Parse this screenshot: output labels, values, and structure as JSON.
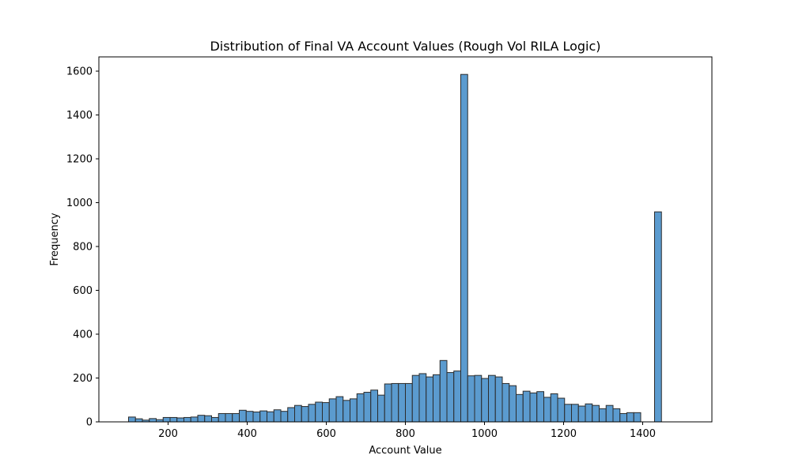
{
  "chart_data": {
    "type": "bar",
    "title": "Distribution of Final VA Account Values (Rough Vol RILA Logic)",
    "xlabel": "Account Value",
    "ylabel": "Frequency",
    "xlim": [
      25,
      1575
    ],
    "ylim": [
      0,
      1665
    ],
    "xticks": [
      200,
      400,
      600,
      800,
      1000,
      1200,
      1400
    ],
    "yticks": [
      0,
      200,
      400,
      600,
      800,
      1000,
      1200,
      1400,
      1600
    ],
    "grid": false,
    "bin_start": 100,
    "bin_width": 17.5,
    "values": [
      22,
      14,
      8,
      15,
      10,
      20,
      20,
      18,
      20,
      22,
      30,
      28,
      20,
      38,
      38,
      38,
      53,
      48,
      45,
      50,
      46,
      55,
      48,
      65,
      75,
      70,
      80,
      90,
      88,
      105,
      115,
      98,
      105,
      128,
      135,
      145,
      122,
      173,
      175,
      175,
      175,
      212,
      220,
      205,
      215,
      280,
      225,
      232,
      1585,
      210,
      212,
      198,
      212,
      205,
      175,
      165,
      125,
      140,
      132,
      138,
      112,
      128,
      108,
      80,
      80,
      72,
      82,
      75,
      60,
      75,
      60,
      38,
      42,
      42,
      0,
      0,
      958
    ],
    "colors": {
      "bar_fill": "#5b9bcf",
      "bar_edge": "#2b2b2b",
      "axis": "#000000"
    }
  }
}
